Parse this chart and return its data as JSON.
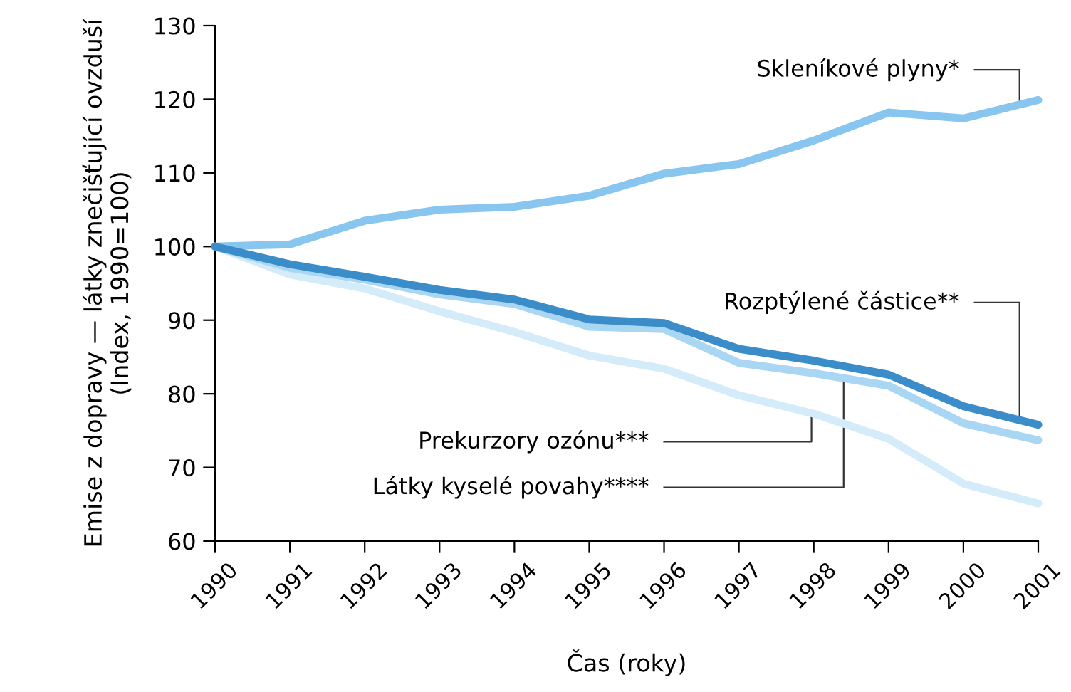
{
  "chart_data": {
    "type": "line",
    "xlabel": "Čas (roky)",
    "ylabel": "Emise z dopravy — látky znečišťující ovzduší (Index, 1990=100)",
    "x": [
      1990,
      1991,
      1992,
      1993,
      1994,
      1995,
      1996,
      1997,
      1998,
      1999,
      2000,
      2001
    ],
    "xlim": [
      1990,
      2001
    ],
    "xticks": [
      1990,
      1991,
      1992,
      1993,
      1994,
      1995,
      1996,
      1997,
      1998,
      1999,
      2000,
      2001
    ],
    "ylim": [
      60,
      130
    ],
    "yticks": [
      60,
      70,
      80,
      90,
      100,
      110,
      120,
      130
    ],
    "grid": false,
    "legend": false,
    "marker": "none",
    "line_style": "solid",
    "series": [
      {
        "name": "Skleníkové plyny*",
        "color": "#88c6ef",
        "values": [
          100,
          100.3,
          103.5,
          105.0,
          105.4,
          106.9,
          109.9,
          111.2,
          114.4,
          118.2,
          117.4,
          119.9
        ]
      },
      {
        "name": "Rozptýlené částice**",
        "color": "#3a8dc8",
        "values": [
          100,
          97.6,
          95.9,
          94.1,
          92.8,
          90.1,
          89.6,
          86.1,
          84.5,
          82.6,
          78.3,
          75.8
        ]
      },
      {
        "name": "Prekurzory ozónu***",
        "color": "#d4ebfa",
        "values": [
          100,
          96.2,
          94.3,
          91.2,
          88.4,
          85.2,
          83.4,
          79.8,
          77.3,
          73.9,
          67.8,
          65.1
        ]
      },
      {
        "name": "Látky kyselé povahy****",
        "color": "#a9d6f3",
        "values": [
          100,
          97.1,
          95.5,
          93.5,
          92.2,
          89.1,
          88.8,
          84.2,
          82.8,
          81.1,
          76.0,
          73.7
        ]
      }
    ]
  }
}
